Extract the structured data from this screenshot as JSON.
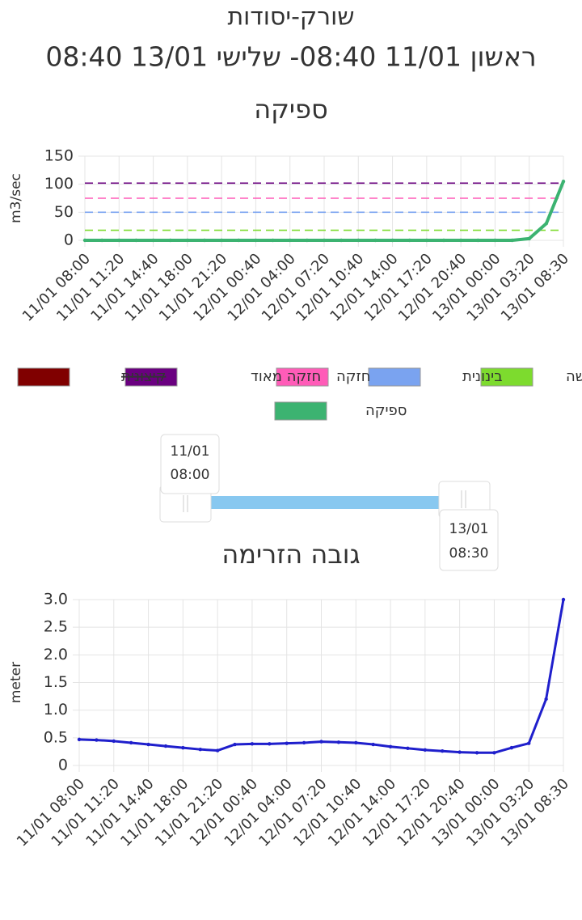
{
  "header": {
    "title": "שורק-יסודות",
    "subtitle": "ראשון 11/01 08:40- שלישי 13/01 08:40"
  },
  "chart_data": [
    {
      "type": "line",
      "title": "ספיקה",
      "y_label": "m3/sec",
      "categories": [
        "11/01 08:00",
        null,
        "11/01 11:20",
        null,
        "11/01 14:40",
        null,
        "11/01 18:00",
        null,
        "11/01 21:20",
        null,
        "12/01 00:40",
        null,
        "12/01 04:00",
        null,
        "12/01 07:20",
        null,
        "12/01 10:40",
        null,
        "12/01 14:00",
        null,
        "12/01 17:20",
        null,
        "12/01 20:40",
        null,
        "13/01 00:00",
        null,
        "13/01 03:20",
        null,
        "13/01 08:30"
      ],
      "series": [
        {
          "name": "ספיקה",
          "color": "#3cb371",
          "values": [
            0,
            0,
            0,
            0,
            0,
            0,
            0,
            0,
            0,
            0,
            0,
            0,
            0,
            0,
            0,
            0,
            0,
            0,
            0,
            0,
            0,
            0,
            0,
            0,
            0,
            0,
            3,
            30,
            105
          ]
        }
      ],
      "thresholds": [
        {
          "name": "חלשה",
          "color": "#7ddb2e",
          "value": 18
        },
        {
          "name": "בינונית",
          "color": "#7aa3f0",
          "value": 50
        },
        {
          "name": "חזקה",
          "color": "#ff5cb8",
          "value": 75
        },
        {
          "name": "חזקה מאוד",
          "color": "#6a0080",
          "value": 102
        },
        {
          "name": "קיצונית",
          "color": "#800000",
          "value": 150,
          "hidden": true
        }
      ],
      "ylim": [
        0,
        150
      ],
      "yticks": [
        0,
        50,
        100,
        150
      ],
      "grid": true
    },
    {
      "type": "line",
      "title": "גובה הזרימה",
      "y_label": "meter",
      "categories": [
        "11/01 08:00",
        null,
        "11/01 11:20",
        null,
        "11/01 14:40",
        null,
        "11/01 18:00",
        null,
        "11/01 21:20",
        null,
        "12/01 00:40",
        null,
        "12/01 04:00",
        null,
        "12/01 07:20",
        null,
        "12/01 10:40",
        null,
        "12/01 14:00",
        null,
        "12/01 17:20",
        null,
        "12/01 20:40",
        null,
        "13/01 00:00",
        null,
        "13/01 03:20",
        null,
        "13/01 08:30"
      ],
      "series": [
        {
          "name": "גובה הזרימה",
          "color": "#1f1fcc",
          "values": [
            0.47,
            0.46,
            0.44,
            0.41,
            0.38,
            0.35,
            0.32,
            0.29,
            0.27,
            0.38,
            0.39,
            0.39,
            0.4,
            0.41,
            0.43,
            0.42,
            0.41,
            0.38,
            0.34,
            0.31,
            0.28,
            0.26,
            0.24,
            0.23,
            0.23,
            0.32,
            0.4,
            1.2,
            3.0
          ]
        }
      ],
      "ylim": [
        0,
        3
      ],
      "yticks": [
        0,
        0.5,
        {
          "value": 1,
          "label": "1.0"
        },
        1.5,
        {
          "value": 2,
          "label": "2.0"
        },
        2.5,
        {
          "value": 3,
          "label": "3.0"
        }
      ],
      "grid": true
    }
  ],
  "slider": {
    "start": {
      "date": "11/01",
      "time": "08:00"
    },
    "end": {
      "date": "13/01",
      "time": "08:30"
    }
  }
}
